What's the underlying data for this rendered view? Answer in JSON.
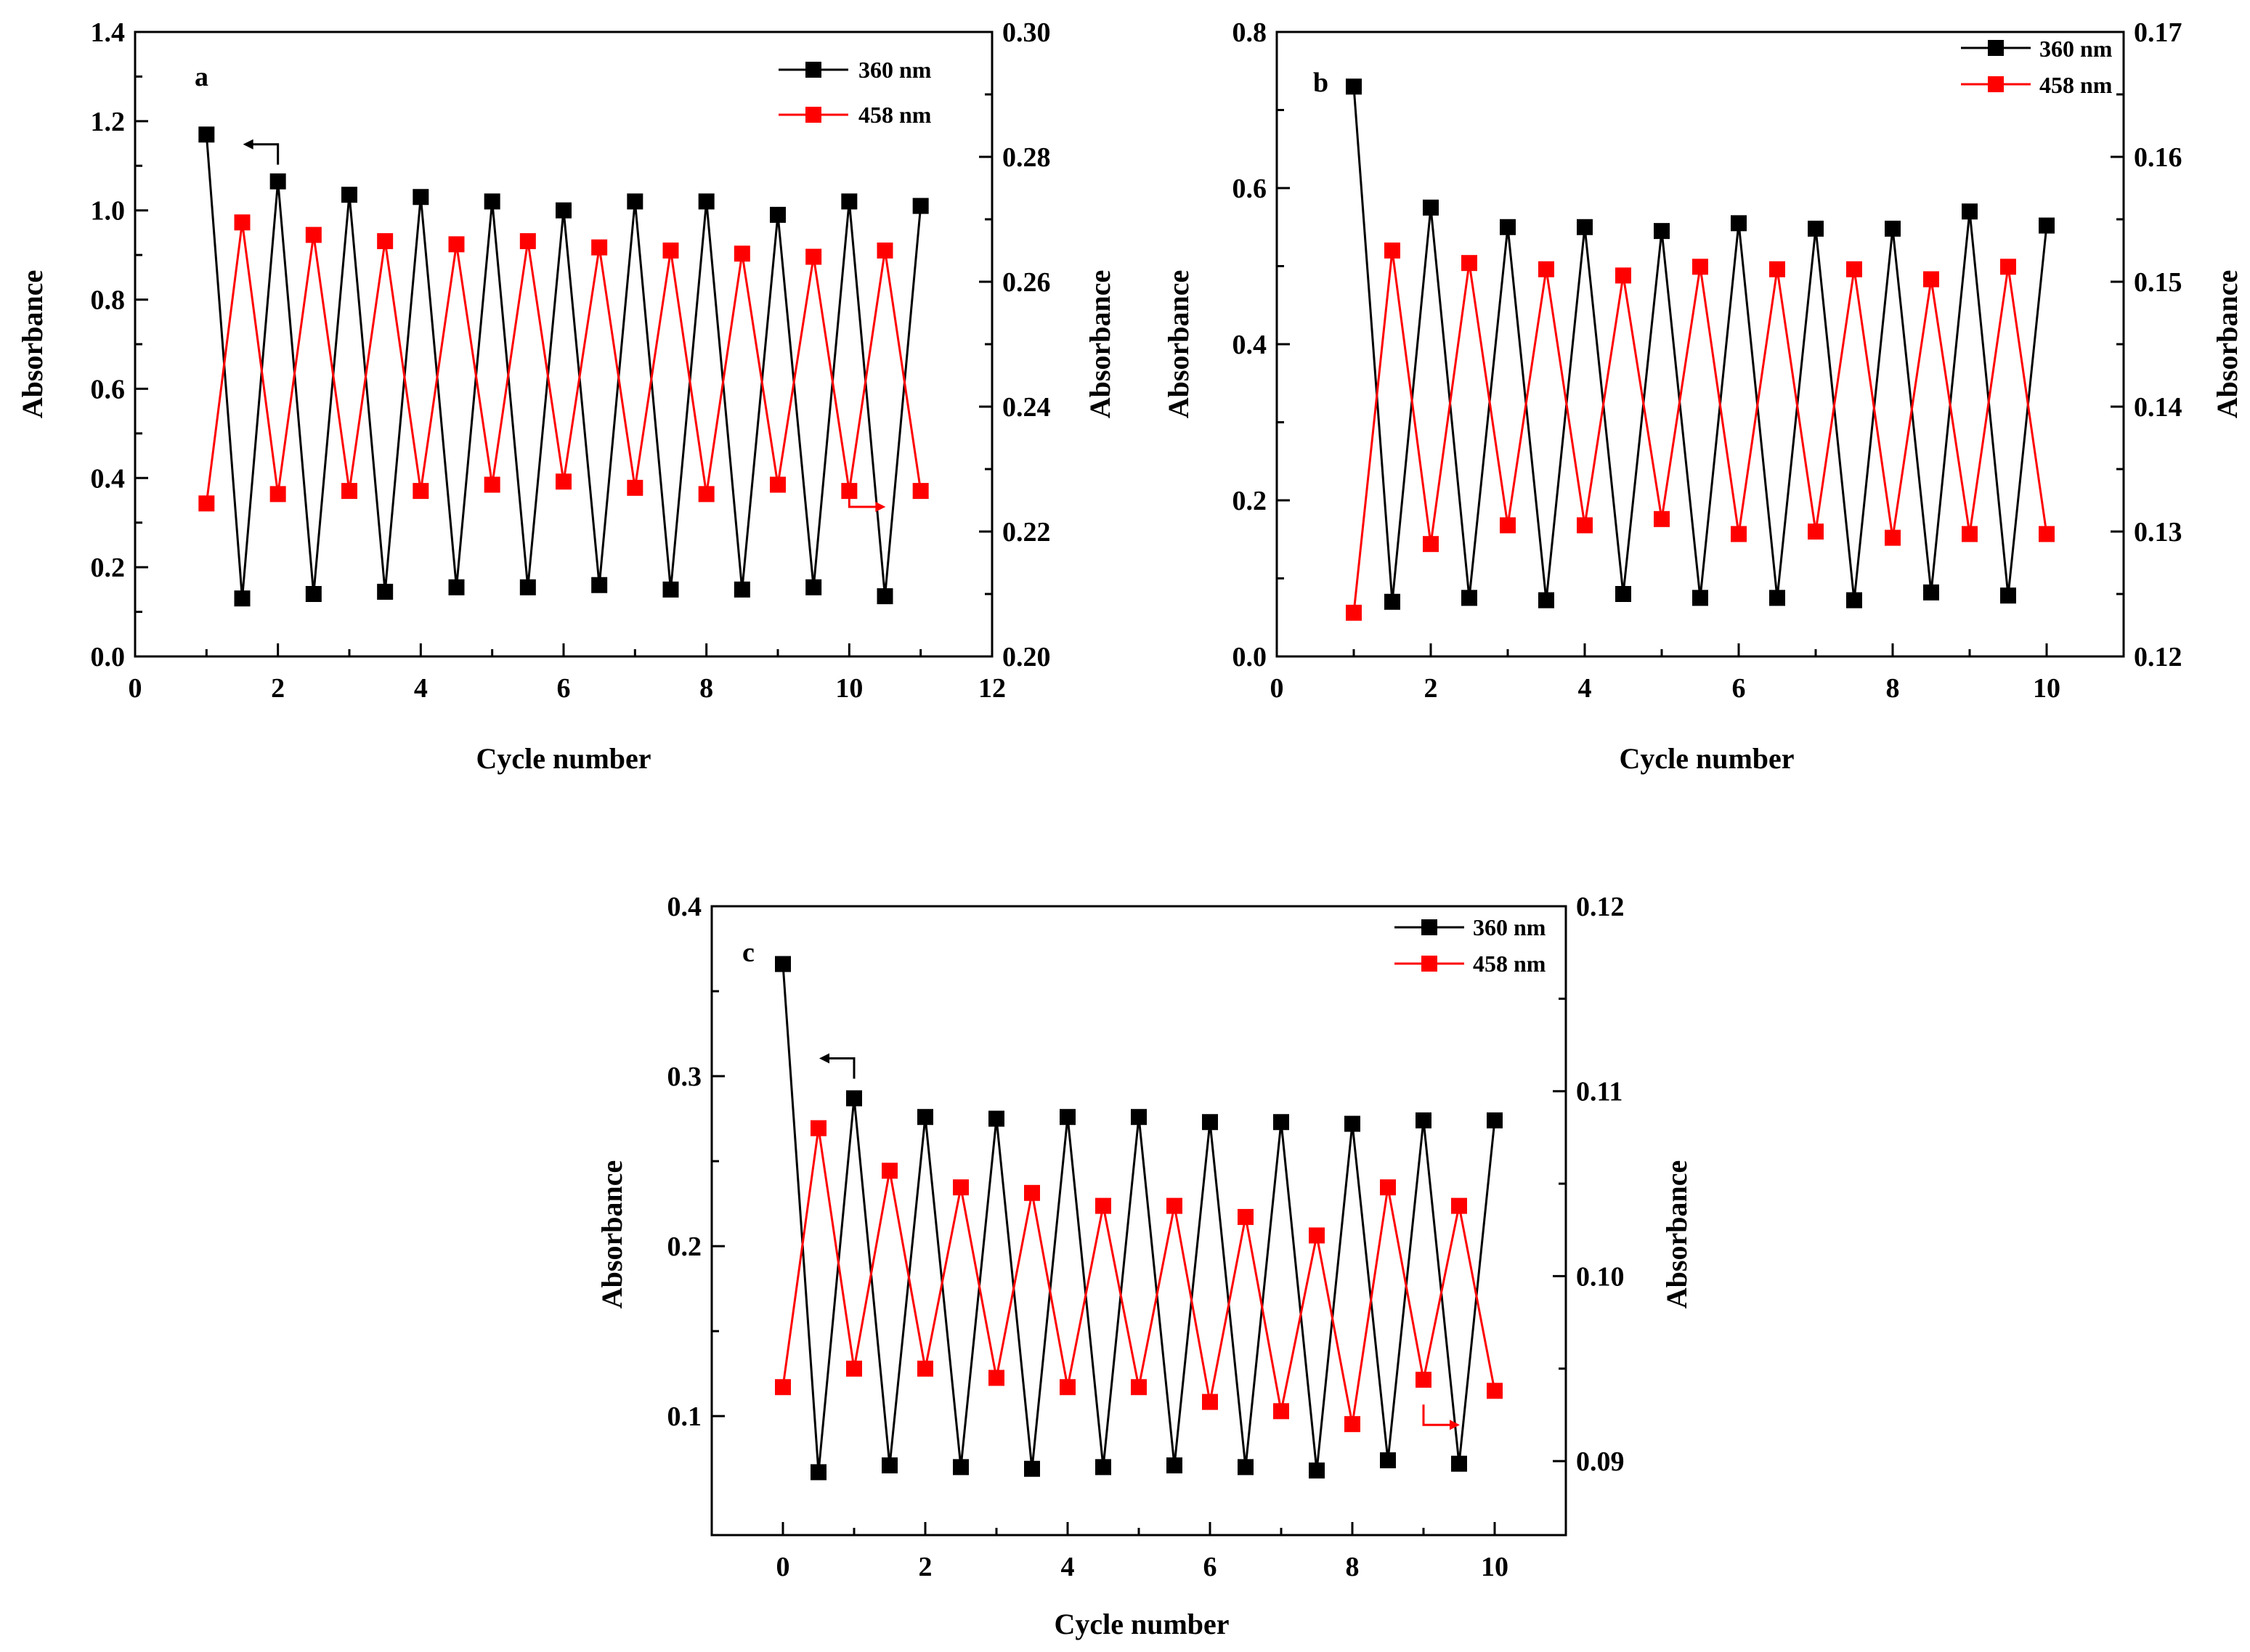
{
  "figure": {
    "panels": [
      "a",
      "b",
      "c"
    ]
  },
  "colors": {
    "series_360": "#000000",
    "series_458": "#ff0000"
  },
  "chart_data": [
    {
      "type": "line",
      "panel_label": "a",
      "xlabel": "Cycle number",
      "ylabel_left": "Absorbance",
      "ylabel_right": "Absorbance",
      "xlim": [
        0,
        12
      ],
      "ylim_left": [
        0.0,
        1.4
      ],
      "ylim_right": [
        0.2,
        0.3
      ],
      "xticks": [
        "0",
        "2",
        "4",
        "6",
        "8",
        "10",
        "12"
      ],
      "yticks_left": [
        "0.0",
        "0.2",
        "0.4",
        "0.6",
        "0.8",
        "1.0",
        "1.2",
        "1.4"
      ],
      "yticks_right": [
        "0.20",
        "0.22",
        "0.24",
        "0.26",
        "0.28",
        "0.30"
      ],
      "legend": [
        "360 nm",
        "458 nm"
      ],
      "series": [
        {
          "name": "360 nm",
          "axis": "left",
          "color": "#000000",
          "x": [
            1,
            1.5,
            2,
            2.5,
            3,
            3.5,
            4,
            4.5,
            5,
            5.5,
            6,
            6.5,
            7,
            7.5,
            8,
            8.5,
            9,
            9.5,
            10,
            10.5,
            11
          ],
          "y": [
            1.17,
            0.13,
            1.065,
            0.14,
            1.035,
            0.145,
            1.03,
            0.155,
            1.02,
            0.155,
            1.0,
            0.16,
            1.02,
            0.15,
            1.02,
            0.15,
            0.99,
            0.155,
            1.02,
            0.135,
            1.01
          ]
        },
        {
          "name": "458 nm",
          "axis": "right",
          "color": "#ff0000",
          "x": [
            1,
            1.5,
            2,
            2.5,
            3,
            3.5,
            4,
            4.5,
            5,
            5.5,
            6,
            6.5,
            7,
            7.5,
            8,
            8.5,
            9,
            9.5,
            10,
            10.5,
            11
          ],
          "y": [
            0.2245,
            0.2695,
            0.226,
            0.2675,
            0.2265,
            0.2665,
            0.2265,
            0.266,
            0.2275,
            0.2665,
            0.228,
            0.2655,
            0.227,
            0.265,
            0.226,
            0.2645,
            0.2275,
            0.264,
            0.2265,
            0.265,
            0.2265
          ]
        }
      ],
      "annotations": [
        {
          "type": "arrow",
          "direction": "left-axis",
          "color": "#000000",
          "near": {
            "x": 2.0,
            "y": 1.07
          }
        },
        {
          "type": "arrow",
          "direction": "right-axis",
          "color": "#ff0000",
          "near": {
            "x": 10.0,
            "y": 0.23
          }
        }
      ]
    },
    {
      "type": "line",
      "panel_label": "b",
      "xlabel": "Cycle number",
      "ylabel_left": "Absorbance",
      "ylabel_right": "Absorbance",
      "xlim": [
        0,
        11
      ],
      "ylim_left": [
        0.0,
        0.8
      ],
      "ylim_right": [
        0.12,
        0.17
      ],
      "xticks": [
        "0",
        "2",
        "4",
        "6",
        "8",
        "10"
      ],
      "yticks_left": [
        "0.0",
        "0.2",
        "0.4",
        "0.6",
        "0.8"
      ],
      "yticks_right": [
        "0.12",
        "0.13",
        "0.14",
        "0.15",
        "0.16",
        "0.17"
      ],
      "legend": [
        "360 nm",
        "458 nm"
      ],
      "series": [
        {
          "name": "360 nm",
          "axis": "left",
          "color": "#000000",
          "x": [
            1,
            1.5,
            2,
            2.5,
            3,
            3.5,
            4,
            4.5,
            5,
            5.5,
            6,
            6.5,
            7,
            7.5,
            8,
            8.5,
            9,
            9.5,
            10
          ],
          "y": [
            0.73,
            0.07,
            0.575,
            0.075,
            0.55,
            0.072,
            0.55,
            0.08,
            0.545,
            0.075,
            0.555,
            0.075,
            0.548,
            0.072,
            0.548,
            0.082,
            0.57,
            0.078,
            0.552
          ]
        },
        {
          "name": "458 nm",
          "axis": "right",
          "color": "#ff0000",
          "x": [
            1,
            1.5,
            2,
            2.5,
            3,
            3.5,
            4,
            4.5,
            5,
            5.5,
            6,
            6.5,
            7,
            7.5,
            8,
            8.5,
            9,
            9.5,
            10
          ],
          "y": [
            0.1235,
            0.1525,
            0.129,
            0.1515,
            0.1305,
            0.151,
            0.1305,
            0.1505,
            0.131,
            0.1512,
            0.1298,
            0.151,
            0.13,
            0.151,
            0.1295,
            0.1502,
            0.1298,
            0.1512,
            0.1298
          ]
        }
      ],
      "annotations": []
    },
    {
      "type": "line",
      "panel_label": "c",
      "xlabel": "Cycle number",
      "ylabel_left": "Absorbance",
      "ylabel_right": "Absorbance",
      "xlim": [
        -1,
        11
      ],
      "ylim_left": [
        0.03,
        0.4
      ],
      "ylim_right": [
        0.086,
        0.12
      ],
      "xticks": [
        "0",
        "2",
        "4",
        "6",
        "8",
        "10"
      ],
      "yticks_left": [
        "0.1",
        "0.2",
        "0.3",
        "0.4"
      ],
      "yticks_right": [
        "0.09",
        "0.10",
        "0.11",
        "0.12"
      ],
      "legend": [
        "360 nm",
        "458 nm"
      ],
      "series": [
        {
          "name": "360 nm",
          "axis": "left",
          "color": "#000000",
          "x": [
            0,
            0.5,
            1,
            1.5,
            2,
            2.5,
            3,
            3.5,
            4,
            4.5,
            5,
            5.5,
            6,
            6.5,
            7,
            7.5,
            8,
            8.5,
            9,
            9.5,
            10
          ],
          "y": [
            0.366,
            0.067,
            0.287,
            0.071,
            0.276,
            0.07,
            0.275,
            0.069,
            0.276,
            0.07,
            0.276,
            0.071,
            0.273,
            0.07,
            0.273,
            0.068,
            0.272,
            0.074,
            0.274,
            0.072,
            0.274
          ]
        },
        {
          "name": "458 nm",
          "axis": "right",
          "color": "#ff0000",
          "x": [
            0,
            0.5,
            1,
            1.5,
            2,
            2.5,
            3,
            3.5,
            4,
            4.5,
            5,
            5.5,
            6,
            6.5,
            7,
            7.5,
            8,
            8.5,
            9,
            9.5,
            10
          ],
          "y": [
            0.094,
            0.108,
            0.095,
            0.1057,
            0.095,
            0.1048,
            0.0945,
            0.1045,
            0.094,
            0.1038,
            0.094,
            0.1038,
            0.0932,
            0.1032,
            0.0927,
            0.1022,
            0.092,
            0.1048,
            0.0944,
            0.1038,
            0.0938
          ]
        }
      ],
      "annotations": [
        {
          "type": "arrow",
          "direction": "left-axis",
          "color": "#000000",
          "near": {
            "x": 1.0,
            "y": 0.29
          }
        },
        {
          "type": "arrow",
          "direction": "right-axis",
          "color": "#ff0000",
          "near": {
            "x": 9.0,
            "y": 0.094
          }
        }
      ]
    }
  ]
}
